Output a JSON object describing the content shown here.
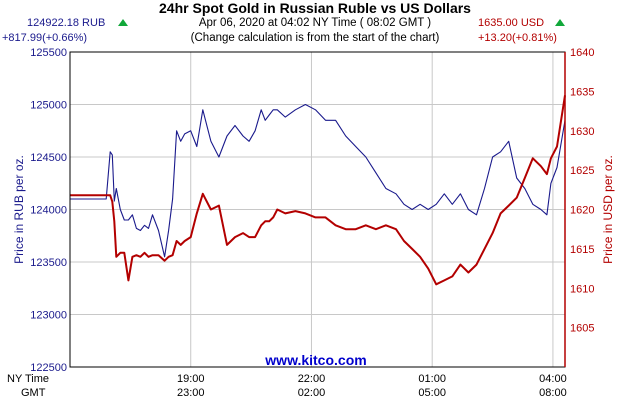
{
  "header": {
    "title": "24hr Spot Gold in Russian Ruble vs US Dollars",
    "subtitle_date": "Apr 06, 2020 at 04:02 NY Time ( 08:02 GMT )",
    "subtitle_note": "(Change calculation is from the start of the chart)",
    "left_price": "124922.18 RUB",
    "left_change": "+817.99(+0.66%)",
    "right_price": "1635.00 USD",
    "right_change": "+13.20(+0.81%)",
    "up_icon": "green-up-triangle-icon"
  },
  "colors": {
    "rub": "#1a1a8c",
    "usd": "#b30000",
    "grid": "#c8c8c8",
    "frame": "#000000",
    "watermark": "#0000cc",
    "up_indicator": "#11a83a"
  },
  "chart_data": {
    "type": "line",
    "title": "24hr Spot Gold in Russian Ruble vs US Dollars",
    "ylabel_left": "Price in RUB per oz.",
    "ylabel_right": "Price in USD per oz.",
    "ylim_left": [
      122500,
      125500
    ],
    "ylim_right": [
      1600,
      1640
    ],
    "yticks_left": [
      "125500",
      "125000",
      "124500",
      "124000",
      "123500",
      "123000",
      "122500"
    ],
    "yticks_right": [
      "1640",
      "1635",
      "1630",
      "1625",
      "1620",
      "1615",
      "1610",
      "1605"
    ],
    "x_axis": {
      "row_labels": [
        "NY Time",
        "GMT"
      ],
      "ny_ticks": [
        "19:00",
        "22:00",
        "01:00",
        "04:00"
      ],
      "gmt_ticks": [
        "23:00",
        "02:00",
        "05:00",
        "08:00"
      ]
    },
    "grid": true,
    "watermark": "www.kitco.com",
    "x_hours_since_ny_1600": [
      0,
      0.5,
      0.8,
      0.9,
      1.0,
      1.05,
      1.1,
      1.15,
      1.25,
      1.35,
      1.45,
      1.55,
      1.65,
      1.75,
      1.85,
      1.95,
      2.05,
      2.2,
      2.35,
      2.45,
      2.55,
      2.65,
      2.75,
      2.85,
      3.0,
      3.15,
      3.3,
      3.5,
      3.7,
      3.9,
      4.1,
      4.3,
      4.45,
      4.6,
      4.75,
      4.85,
      4.95,
      5.05,
      5.15,
      5.35,
      5.6,
      5.85,
      6.1,
      6.35,
      6.6,
      6.85,
      7.1,
      7.35,
      7.6,
      7.85,
      8.1,
      8.3,
      8.5,
      8.7,
      8.9,
      9.1,
      9.3,
      9.5,
      9.7,
      9.9,
      10.1,
      10.3,
      10.5,
      10.7,
      10.9,
      11.1,
      11.3,
      11.5,
      11.7,
      11.85,
      11.95,
      12.1,
      12.3
    ],
    "series": [
      {
        "name": "RUB",
        "axis": "left",
        "values": [
          124100,
          124100,
          124100,
          124100,
          124550,
          124520,
          124080,
          124200,
          124000,
          123900,
          123900,
          123950,
          123820,
          123800,
          123850,
          123820,
          123950,
          123800,
          123550,
          123800,
          124100,
          124750,
          124650,
          124720,
          124750,
          124600,
          124950,
          124650,
          124500,
          124700,
          124800,
          124700,
          124650,
          124750,
          124950,
          124850,
          124900,
          124950,
          124950,
          124880,
          124950,
          125000,
          124950,
          124850,
          124850,
          124700,
          124600,
          124500,
          124350,
          124200,
          124150,
          124050,
          124000,
          124050,
          124000,
          124050,
          124150,
          124050,
          124150,
          124000,
          123950,
          124200,
          124500,
          124550,
          124650,
          124300,
          124200,
          124050,
          124000,
          123950,
          124250,
          124400,
          124850
        ]
      },
      {
        "name": "USD",
        "axis": "right",
        "values": [
          1621.8,
          1621.8,
          1621.8,
          1621.8,
          1621.8,
          1621.0,
          1618.5,
          1614.0,
          1614.5,
          1614.5,
          1611.0,
          1614.0,
          1614.2,
          1614.0,
          1614.5,
          1614.0,
          1614.2,
          1614.2,
          1613.5,
          1614.0,
          1614.2,
          1616.0,
          1615.5,
          1616.0,
          1616.5,
          1619.5,
          1622.0,
          1620.0,
          1620.5,
          1615.5,
          1616.5,
          1617.0,
          1616.5,
          1616.5,
          1618.0,
          1618.5,
          1618.5,
          1619.0,
          1620.0,
          1619.5,
          1619.8,
          1619.5,
          1619.0,
          1619.0,
          1618.0,
          1617.5,
          1617.5,
          1618.0,
          1617.5,
          1618.0,
          1617.5,
          1616.0,
          1615.0,
          1614.0,
          1612.5,
          1610.5,
          1611.0,
          1611.5,
          1613.0,
          1612.0,
          1613.0,
          1615.0,
          1617.0,
          1619.5,
          1620.5,
          1621.5,
          1624.0,
          1626.5,
          1625.5,
          1624.5,
          1626.5,
          1628.0,
          1634.5
        ]
      }
    ]
  }
}
